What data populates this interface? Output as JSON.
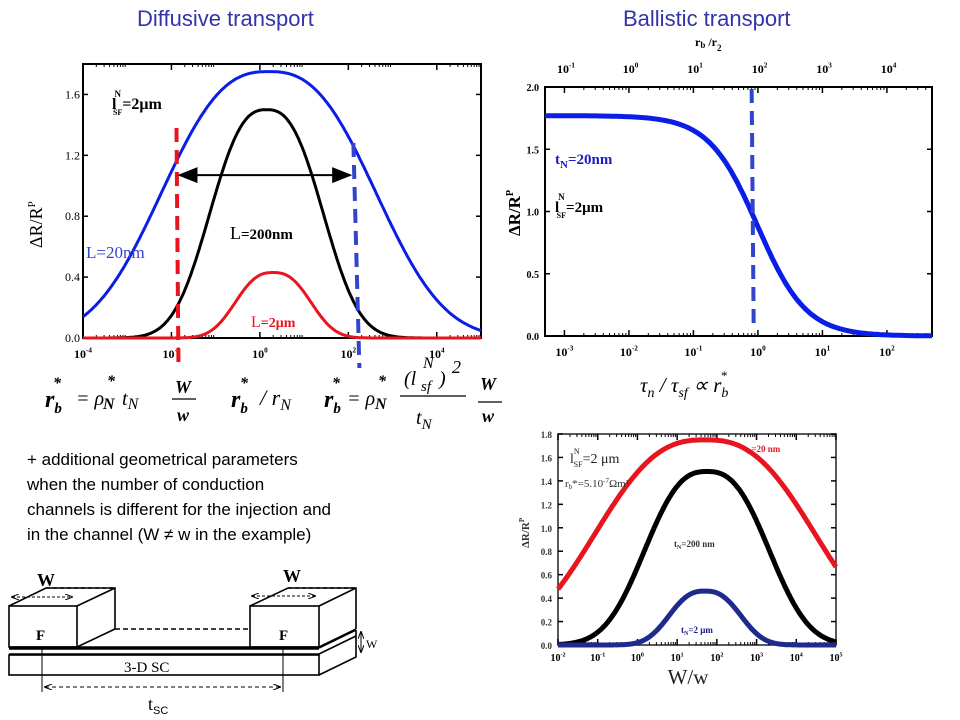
{
  "titles": {
    "diffusive": "Diffusive transport",
    "ballistic": "Ballistic transport"
  },
  "paragraph": [
    "+ additional geometrical parameters",
    "when the number of conduction",
    "channels is different for the injection and",
    "in the channel (W ≠ w in the example)"
  ],
  "formulas": {
    "f1": {
      "lhs": "r",
      "lhs_sub": "b",
      "star": "*",
      "rhs": "= ρ",
      "rhs_sub": "N",
      "t": "t",
      "t_sub": "N",
      "num": "W",
      "den": "w"
    },
    "f2": {
      "text": "r",
      "sub": "b",
      "sep": "/ r",
      "sub2": "N"
    },
    "f3": {
      "lhs": "r",
      "lhs_sub": "b",
      "rhs": "= ρ",
      "rhs_sub": "N",
      "num": "(l",
      "num_sup": "N",
      "num_sub": "sf",
      "num_end": ")",
      "num_pow": "2",
      "den": "t",
      "den_sub": "N",
      "num2": "W",
      "den2": "w"
    }
  },
  "diagram": {
    "w_left": "W",
    "w_right": "W",
    "f_left": "F",
    "f_right": "F",
    "channel": "3-D SC",
    "small_w": "W",
    "length": "t",
    "length_sub": "SC"
  },
  "colors": {
    "blue": "#0a1ee6",
    "red": "#e8141e",
    "black": "#000000",
    "dash_blue": "#3344cc",
    "title": "#3333aa"
  },
  "chart_data": [
    {
      "type": "line",
      "title": "Diffusive transport",
      "xlabel": "r_b* / r_N",
      "ylabel": "ΔR/R^P",
      "xscale": "log",
      "xlim": [
        0.0001,
        100000
      ],
      "ylim": [
        0,
        1.8
      ],
      "x_ticks": [
        "10^-4",
        "10^-2",
        "10^0",
        "10^2",
        "10^4"
      ],
      "y_ticks": [
        "0.0",
        "0.4",
        "0.8",
        "1.2",
        "1.6"
      ],
      "annotations": [
        "l_SF^N=2μm",
        "L=20nm",
        "L=200nm",
        "L=2μm"
      ],
      "vlines": [
        {
          "x": 0.013,
          "color": "red",
          "style": "dashed"
        },
        {
          "x": 130,
          "color": "blue",
          "style": "dashed"
        }
      ],
      "arrow": {
        "from": 0.013,
        "to": 110,
        "y": 1.07
      },
      "series": [
        {
          "name": "L=20nm",
          "color": "blue",
          "peak": 1.75,
          "center_log10": 0.2,
          "halfwidth_log": 2.55
        },
        {
          "name": "L=200nm",
          "color": "black",
          "peak": 1.5,
          "center_log10": 0.15,
          "halfwidth_log": 1.35
        },
        {
          "name": "L=2μm",
          "color": "red",
          "peak": 0.43,
          "center_log10": 0.3,
          "halfwidth_log": 0.9
        }
      ]
    },
    {
      "type": "line",
      "title": "Ballistic transport",
      "xlabel": "τ_n / τ_sf ∝ r_b*",
      "x2label": "r_b / r_2",
      "ylabel": "ΔR/R^P",
      "xscale": "log",
      "xlim": [
        0.0005,
        500
      ],
      "ylim": [
        0,
        2.0
      ],
      "x_ticks": [
        "10^-3",
        "10^-2",
        "10^-1",
        "10^0",
        "10^1",
        "10^2"
      ],
      "x2_ticks": [
        "10^-1",
        "10^0",
        "10^1",
        "10^2",
        "10^3",
        "10^4"
      ],
      "y_ticks": [
        "0.0",
        "0.5",
        "1.0",
        "1.5",
        "2.0"
      ],
      "annotations": [
        "t_N=20nm",
        "l_SF^N=2μm"
      ],
      "vlines": [
        {
          "x": 0.8,
          "color": "blue",
          "style": "dashed"
        }
      ],
      "series": [
        {
          "name": "t_N=20nm",
          "color": "blue",
          "plateau": 1.77,
          "midpoint": 1.0,
          "x": [
            0.0005,
            0.01,
            0.05,
            0.2,
            0.5,
            1,
            2,
            5,
            10,
            50,
            500
          ],
          "y": [
            1.77,
            1.75,
            1.68,
            1.45,
            1.2,
            0.95,
            0.62,
            0.3,
            0.15,
            0.03,
            0.0
          ]
        }
      ]
    },
    {
      "type": "line",
      "title": "",
      "xlabel": "W/w",
      "ylabel": "ΔR/R^P",
      "xscale": "log",
      "xlim": [
        0.01,
        100000
      ],
      "ylim": [
        0,
        1.8
      ],
      "x_ticks": [
        "10^-2",
        "10^-1",
        "10^0",
        "10^1",
        "10^2",
        "10^3",
        "10^4",
        "10^5"
      ],
      "y_ticks": [
        "0.0",
        "0.2",
        "0.4",
        "0.6",
        "0.8",
        "1.0",
        "1.2",
        "1.4",
        "1.6",
        "1.8"
      ],
      "annotations": [
        "l_SF^N=2 μm",
        "r_b*=5.10^-7 Ωm²"
      ],
      "series": [
        {
          "name": "t_N=20 nm",
          "color": "red",
          "peak": 1.75,
          "center_log10": 1.7,
          "halfwidth_log": 2.9
        },
        {
          "name": "t_N=200 nm",
          "color": "black",
          "peak": 1.48,
          "center_log10": 1.75,
          "halfwidth_log": 1.65
        },
        {
          "name": "t_N=2 μm",
          "color": "navy",
          "peak": 0.46,
          "center_log10": 1.7,
          "halfwidth_log": 0.95
        }
      ]
    }
  ]
}
